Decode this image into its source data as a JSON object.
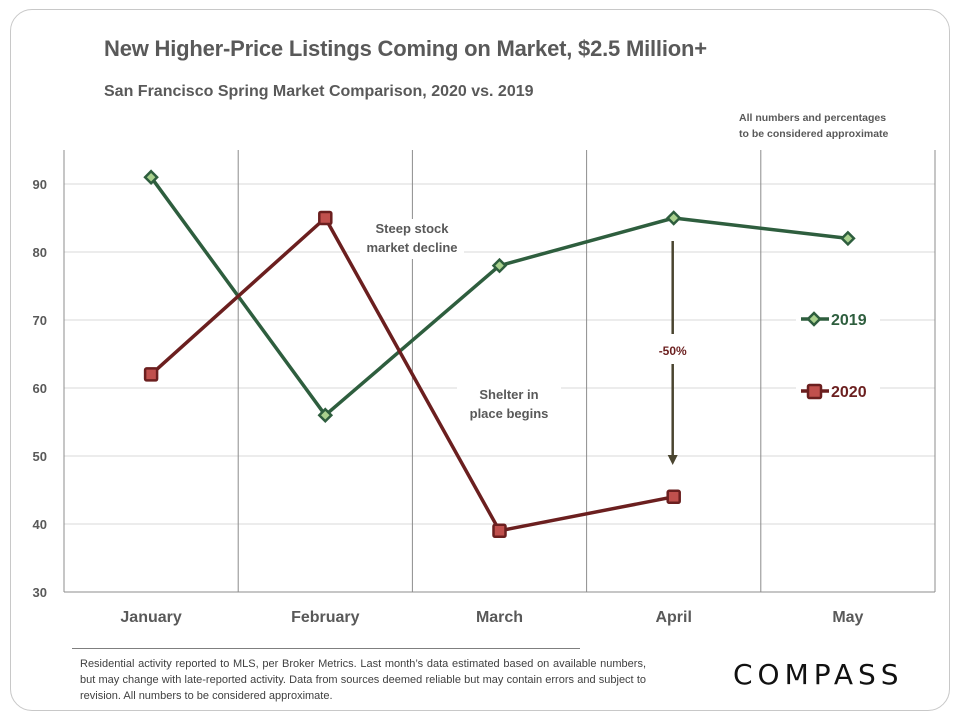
{
  "header": {
    "title": "New Higher-Price Listings Coming on Market, $2.5 Million+",
    "subtitle": "San Francisco Spring Market Comparison,  2020 vs. 2019",
    "note_line1": "All numbers and percentages",
    "note_line2": "to be considered approximate"
  },
  "chart_data": {
    "type": "line",
    "title": "New Higher-Price Listings Coming on Market, $2.5 Million+",
    "subtitle": "San Francisco Spring Market Comparison, 2020 vs. 2019",
    "xlabel": "",
    "ylabel": "",
    "categories": [
      "January",
      "February",
      "March",
      "April",
      "May"
    ],
    "ylim": [
      30,
      95
    ],
    "yticks": [
      30,
      40,
      50,
      60,
      70,
      80,
      90
    ],
    "grid": true,
    "legend": "right",
    "series": [
      {
        "name": "2019",
        "color": "#2e5e3e",
        "marker": "diamond",
        "values": [
          91,
          56,
          78,
          85,
          82
        ]
      },
      {
        "name": "2020",
        "color": "#6b1f1f",
        "marker": "square",
        "values": [
          62,
          85,
          39,
          44,
          null
        ]
      }
    ],
    "annotations": [
      {
        "text_line1": "Steep stock",
        "text_line2": "market decline",
        "near": "February-March"
      },
      {
        "text_line1": "Shelter in",
        "text_line2": "place  begins",
        "near": "March"
      },
      {
        "text": "-50%",
        "type": "arrow",
        "category": "April",
        "from": 85,
        "to": 44,
        "color": "#6b1f1f"
      }
    ]
  },
  "footer": {
    "disclaimer": "Residential activity reported to MLS, per Broker Metrics. Last month’s data estimated based on available numbers, but may change with late-reported activity. Data from sources deemed reliable but may contain errors and subject to revision. All numbers to be considered approximate.",
    "logo": "COMPASS"
  }
}
